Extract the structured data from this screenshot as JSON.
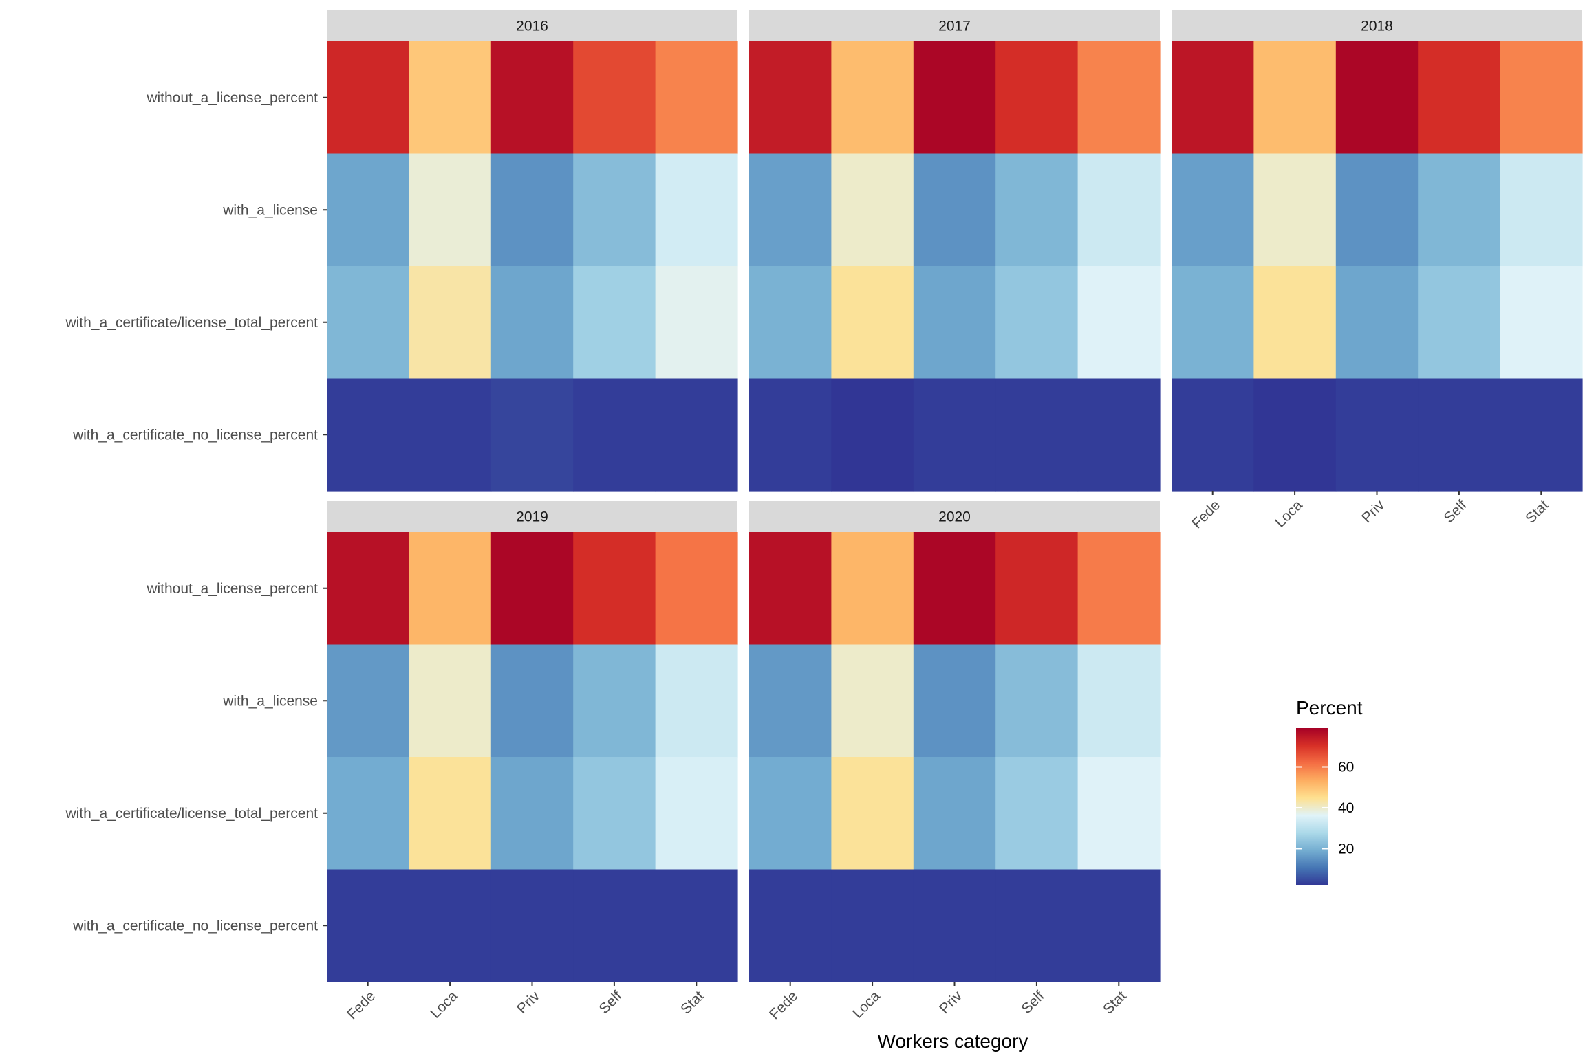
{
  "chart_data": {
    "type": "heatmap",
    "xlabel": "Workers category",
    "ylabel": "",
    "facet_by": "year",
    "categories": [
      "Fede",
      "Loca",
      "Priv",
      "Self",
      "Stat"
    ],
    "rows": [
      "without_a_license_percent",
      "with_a_license",
      "with_a_certificate/license_total_percent",
      "with_a_certificate_no_license_percent"
    ],
    "legend": {
      "title": "Percent",
      "ticks": [
        {
          "value": 20,
          "label": "20"
        },
        {
          "value": 40,
          "label": "40"
        },
        {
          "value": 60,
          "label": "60"
        }
      ],
      "range": [
        2,
        79
      ],
      "position": "right"
    },
    "colors": {
      "scale": [
        "#313695",
        "#4575b4",
        "#74add1",
        "#abd9e9",
        "#e0f3f8",
        "#fee090",
        "#fdae61",
        "#f46d43",
        "#d73027",
        "#a50026"
      ],
      "strip_background": "#d9d9d9",
      "panel_background": "#ebebeb"
    },
    "panels": [
      {
        "year": "2016",
        "values": [
          [
            72,
            49,
            76,
            67,
            59
          ],
          [
            18,
            39,
            15,
            22,
            34
          ],
          [
            21,
            43,
            18,
            26,
            37
          ],
          [
            3,
            3,
            4,
            3,
            3
          ]
        ]
      },
      {
        "year": "2017",
        "values": [
          [
            74,
            51,
            78,
            71,
            59
          ],
          [
            17,
            40,
            15,
            21,
            33
          ],
          [
            20,
            44,
            18,
            24,
            36
          ],
          [
            3,
            2,
            3,
            3,
            3
          ]
        ]
      },
      {
        "year": "2018",
        "values": [
          [
            75,
            51,
            78,
            71,
            59
          ],
          [
            17,
            40,
            15,
            21,
            33
          ],
          [
            20,
            44,
            18,
            24,
            36
          ],
          [
            3,
            2,
            3,
            3,
            3
          ]
        ]
      },
      {
        "year": "2019",
        "values": [
          [
            76,
            52,
            78,
            71,
            61
          ],
          [
            16,
            40,
            15,
            21,
            33
          ],
          [
            19,
            44,
            18,
            24,
            35
          ],
          [
            3,
            3,
            3,
            3,
            3
          ]
        ]
      },
      {
        "year": "2020",
        "values": [
          [
            76,
            52,
            78,
            72,
            60
          ],
          [
            16,
            40,
            15,
            22,
            33
          ],
          [
            19,
            44,
            18,
            25,
            36
          ],
          [
            3,
            3,
            3,
            3,
            3
          ]
        ]
      }
    ]
  }
}
